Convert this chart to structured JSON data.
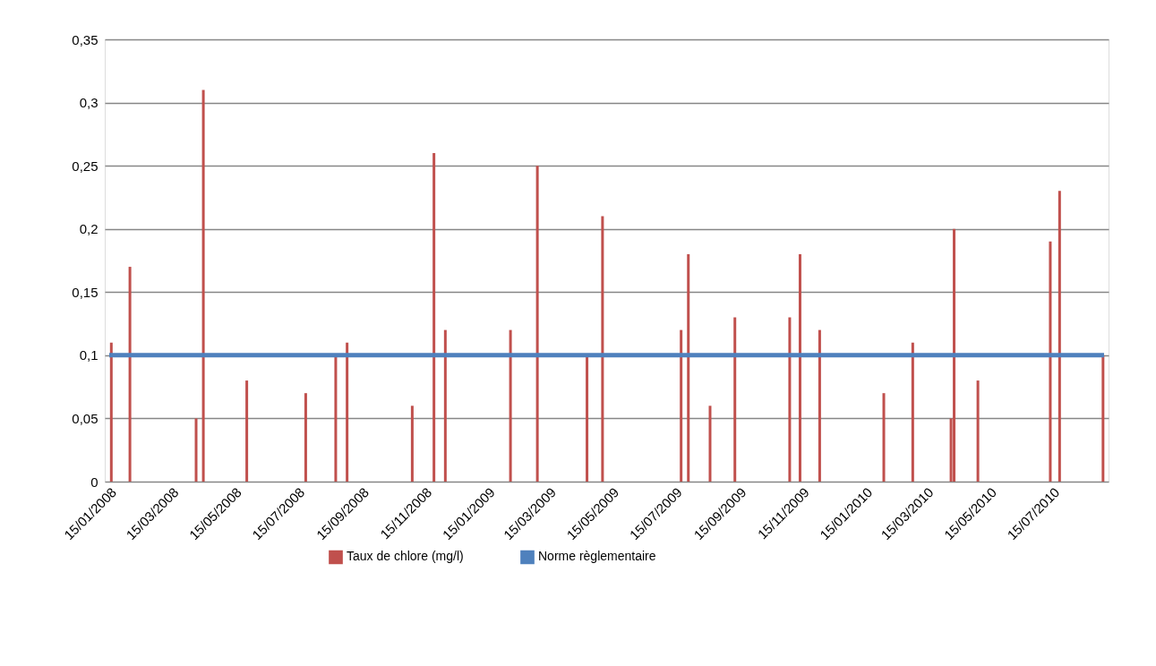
{
  "chart_data": {
    "type": "bar",
    "legend": "bottom",
    "grid": "y",
    "xlim": [
      "2008-01-15",
      "2010-09-03"
    ],
    "xticks": [
      {
        "value": "2008-01-15",
        "label": "15/01/2008"
      },
      {
        "value": "2008-03-15",
        "label": "15/03/2008"
      },
      {
        "value": "2008-05-15",
        "label": "15/05/2008"
      },
      {
        "value": "2008-07-15",
        "label": "15/07/2008"
      },
      {
        "value": "2008-09-15",
        "label": "15/09/2008"
      },
      {
        "value": "2008-11-15",
        "label": "15/11/2008"
      },
      {
        "value": "2009-01-15",
        "label": "15/01/2009"
      },
      {
        "value": "2009-03-15",
        "label": "15/03/2009"
      },
      {
        "value": "2009-05-15",
        "label": "15/05/2009"
      },
      {
        "value": "2009-07-15",
        "label": "15/07/2009"
      },
      {
        "value": "2009-09-15",
        "label": "15/09/2009"
      },
      {
        "value": "2009-11-15",
        "label": "15/11/2009"
      },
      {
        "value": "2010-01-15",
        "label": "15/01/2010"
      },
      {
        "value": "2010-03-15",
        "label": "15/03/2010"
      },
      {
        "value": "2010-05-15",
        "label": "15/05/2010"
      },
      {
        "value": "2010-07-15",
        "label": "15/07/2010"
      }
    ],
    "ylim": [
      0,
      0.35
    ],
    "yticks": [
      0,
      {
        "value": 0.05,
        "label": "0,05"
      },
      {
        "value": 0.1,
        "label": "0,1"
      },
      {
        "value": 0.15,
        "label": "0,15"
      },
      {
        "value": 0.2,
        "label": "0,2"
      },
      {
        "value": 0.25,
        "label": "0,25"
      },
      {
        "value": 0.3,
        "label": "0,3"
      },
      {
        "value": 0.35,
        "label": "0,35"
      }
    ],
    "series": [
      {
        "name": "Taux de chlore (mg/l)",
        "color": "#c0504d",
        "x": [
          "2008-01-17",
          "2008-02-04",
          "2008-04-08",
          "2008-04-15",
          "2008-05-27",
          "2008-07-23",
          "2008-08-21",
          "2008-09-01",
          "2008-11-03",
          "2008-11-24",
          "2008-12-05",
          "2009-02-06",
          "2009-03-04",
          "2009-04-21",
          "2009-05-06",
          "2009-07-21",
          "2009-07-28",
          "2009-08-18",
          "2009-09-11",
          "2009-11-03",
          "2009-11-13",
          "2009-12-02",
          "2010-02-02",
          "2010-03-02",
          "2010-04-08",
          "2010-04-11",
          "2010-05-04",
          "2010-07-13",
          "2010-07-22",
          "2010-09-02"
        ],
        "values": [
          0.11,
          0.17,
          0.05,
          0.31,
          0.08,
          0.07,
          0.1,
          0.11,
          0.06,
          0.26,
          0.12,
          0.12,
          0.25,
          0.1,
          0.21,
          0.12,
          0.18,
          0.06,
          0.13,
          0.13,
          0.18,
          0.12,
          0.07,
          0.11,
          0.05,
          0.2,
          0.08,
          0.19,
          0.23,
          0.1
        ]
      },
      {
        "name": "Norme règlementaire",
        "color": "#4f81bd",
        "type": "line",
        "x": [
          "2008-01-15",
          "2010-09-03"
        ],
        "values": [
          0.1,
          0.1
        ]
      }
    ]
  }
}
